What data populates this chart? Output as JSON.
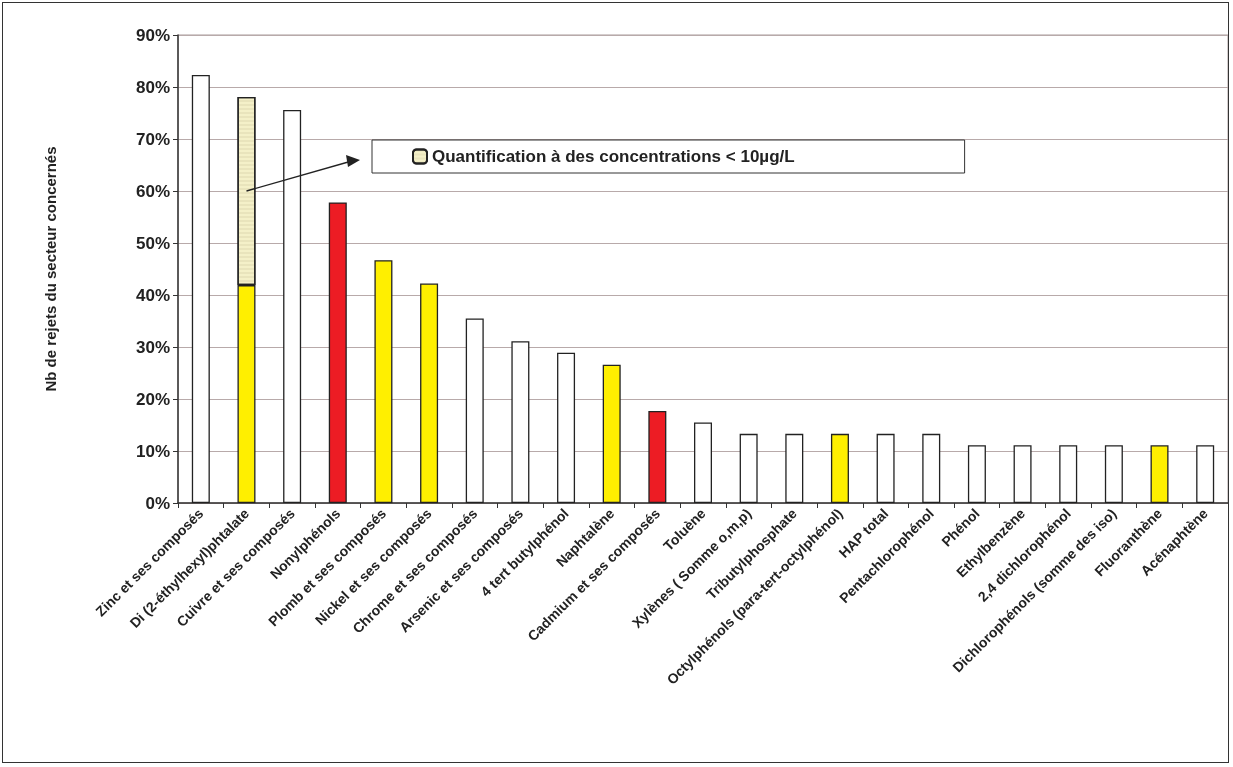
{
  "chart_data": {
    "type": "bar",
    "stacked": true,
    "ylabel": "Nb de rejets du secteur concernés",
    "categories": [
      "Zinc et ses composés",
      "Di (2-éthylhexyl)phtalate",
      "Cuivre et ses composés",
      "Nonylphénols",
      "Plomb et ses composés",
      "Nickel et ses composés",
      "Chrome et ses composés",
      "Arsenic et ses composés",
      "4 tert butylphénol",
      "Naphtalène",
      "Cadmium et ses composés",
      "Toluène",
      "Xylènes ( Somme o,m,p)",
      "Tributylphosphate",
      "Octylphénols (para-tert-octylphénol)",
      "HAP total",
      "Pentachlorophénol",
      "Phénol",
      "Ethylbenzène",
      "2,4 dichlorophénol",
      "Dichlorophénols (somme des iso)",
      "Fluoranthène",
      "Acénaphtène"
    ],
    "series": [
      {
        "values": [
          82.3,
          41.9,
          75.6,
          57.8,
          46.7,
          42.2,
          35.5,
          31.1,
          28.9,
          26.6,
          17.7,
          15.5,
          13.3,
          13.3,
          13.3,
          13.3,
          13.3,
          11.1,
          11.1,
          11.1,
          11.1,
          11.1,
          11.1
        ],
        "colors": [
          "#ffffff",
          "#ffef00",
          "#ffffff",
          "#ed1c24",
          "#ffef00",
          "#ffef00",
          "#ffffff",
          "#ffffff",
          "#ffffff",
          "#ffef00",
          "#ed1c24",
          "#ffffff",
          "#ffffff",
          "#ffffff",
          "#ffef00",
          "#ffffff",
          "#ffffff",
          "#ffffff",
          "#ffffff",
          "#ffffff",
          "#ffffff",
          "#ffef00",
          "#ffffff"
        ]
      },
      {
        "name": "Quantification à des concentrations < 10µg/L",
        "color": "#f4f0c8",
        "values": [
          null,
          36.2,
          null,
          null,
          null,
          null,
          null,
          null,
          null,
          null,
          null,
          null,
          null,
          null,
          null,
          null,
          null,
          null,
          null,
          null,
          null,
          null,
          null
        ]
      }
    ],
    "ylim": [
      0,
      90
    ],
    "yticks": [
      {
        "value": 0,
        "label": "0%"
      },
      {
        "value": 10,
        "label": "10%"
      },
      {
        "value": 20,
        "label": "20%"
      },
      {
        "value": 30,
        "label": "30%"
      },
      {
        "value": 40,
        "label": "40%"
      },
      {
        "value": 50,
        "label": "50%"
      },
      {
        "value": 60,
        "label": "60%"
      },
      {
        "value": 70,
        "label": "70%"
      },
      {
        "value": 80,
        "label": "80%"
      },
      {
        "value": 90,
        "label": "90%"
      }
    ],
    "grid": "y",
    "legend": "top"
  }
}
